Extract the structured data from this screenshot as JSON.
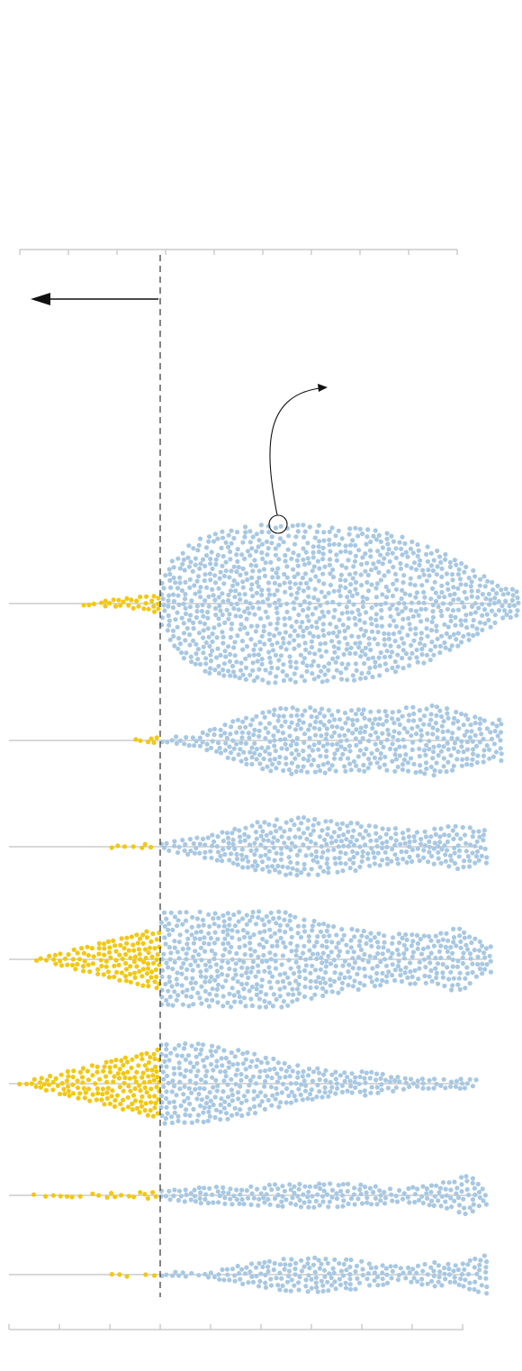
{
  "chart_data": {
    "type": "scatter",
    "subtype": "beeswarm",
    "title": "",
    "xlabel": "",
    "ylabel": "",
    "xlim": [
      -3,
      6
    ],
    "reference_value": 0,
    "grid": false,
    "legend": "none",
    "colors": {
      "below_reference": "#F2C811",
      "above_reference": "#A8C8E2",
      "baseline": "#cccccc",
      "axis": "#cccccc",
      "reference_line": "#333333",
      "annotation": "#111111"
    },
    "annotations": {
      "arrow_direction": "left",
      "highlighted_point": {
        "row": 0,
        "value": 2.45
      }
    },
    "rows": [
      {
        "n_below": 30,
        "n_above": 2300,
        "below_min": -1.6,
        "above_max": 7.3,
        "profile": [
          [
            0,
            0.25
          ],
          [
            0.3,
            0.62
          ],
          [
            1.0,
            0.9
          ],
          [
            2.0,
            1.0
          ],
          [
            3.0,
            1.0
          ],
          [
            4.0,
            0.97
          ],
          [
            5.0,
            0.85
          ],
          [
            6.0,
            0.55
          ],
          [
            7.0,
            0.18
          ]
        ]
      },
      {
        "n_below": 6,
        "n_above": 880,
        "below_min": -0.5,
        "above_max": 6.9,
        "profile": [
          [
            0,
            0.05
          ],
          [
            0.8,
            0.18
          ],
          [
            1.5,
            0.55
          ],
          [
            2.5,
            0.9
          ],
          [
            3.5,
            0.85
          ],
          [
            4.5,
            0.8
          ],
          [
            5.5,
            0.95
          ],
          [
            6.6,
            0.55
          ]
        ]
      },
      {
        "n_below": 7,
        "n_above": 620,
        "below_min": -1.05,
        "above_max": 6.6,
        "profile": [
          [
            0,
            0.1
          ],
          [
            0.8,
            0.3
          ],
          [
            2.0,
            0.75
          ],
          [
            2.8,
            0.9
          ],
          [
            3.8,
            0.75
          ],
          [
            4.5,
            0.6
          ],
          [
            5.3,
            0.45
          ],
          [
            6.0,
            0.7
          ],
          [
            6.5,
            0.5
          ]
        ]
      },
      {
        "n_below": 210,
        "n_above": 1650,
        "below_min": -2.5,
        "above_max": 6.7,
        "profile": [
          [
            0,
            1.0
          ],
          [
            1.5,
            1.0
          ],
          [
            2.5,
            1.0
          ],
          [
            3.5,
            0.72
          ],
          [
            4.5,
            0.55
          ],
          [
            5.5,
            0.5
          ],
          [
            6.0,
            0.72
          ],
          [
            6.6,
            0.3
          ]
        ]
      },
      {
        "n_below": 300,
        "n_above": 1050,
        "below_min": -2.9,
        "above_max": 6.4,
        "profile": [
          [
            0,
            1.0
          ],
          [
            0.7,
            1.0
          ],
          [
            1.5,
            0.85
          ],
          [
            2.5,
            0.55
          ],
          [
            3.5,
            0.3
          ],
          [
            4.3,
            0.3
          ],
          [
            5.0,
            0.12
          ],
          [
            5.8,
            0.12
          ],
          [
            6.3,
            0.12
          ]
        ]
      },
      {
        "n_below": 20,
        "n_above": 720,
        "below_min": -2.6,
        "above_max": 6.6,
        "profile": [
          [
            0,
            0.2
          ],
          [
            0.8,
            0.35
          ],
          [
            2.0,
            0.45
          ],
          [
            3.0,
            0.55
          ],
          [
            4.0,
            0.5
          ],
          [
            4.8,
            0.3
          ],
          [
            5.5,
            0.45
          ],
          [
            6.2,
            0.9
          ],
          [
            6.6,
            0.4
          ]
        ]
      },
      {
        "n_below": 5,
        "n_above": 500,
        "below_min": -1.0,
        "above_max": 6.6,
        "profile": [
          [
            0,
            0.12
          ],
          [
            1.0,
            0.12
          ],
          [
            1.6,
            0.4
          ],
          [
            2.8,
            0.8
          ],
          [
            3.8,
            0.7
          ],
          [
            4.5,
            0.45
          ],
          [
            5.0,
            0.3
          ],
          [
            5.5,
            0.55
          ],
          [
            6.0,
            0.45
          ],
          [
            6.5,
            0.85
          ]
        ]
      }
    ]
  }
}
